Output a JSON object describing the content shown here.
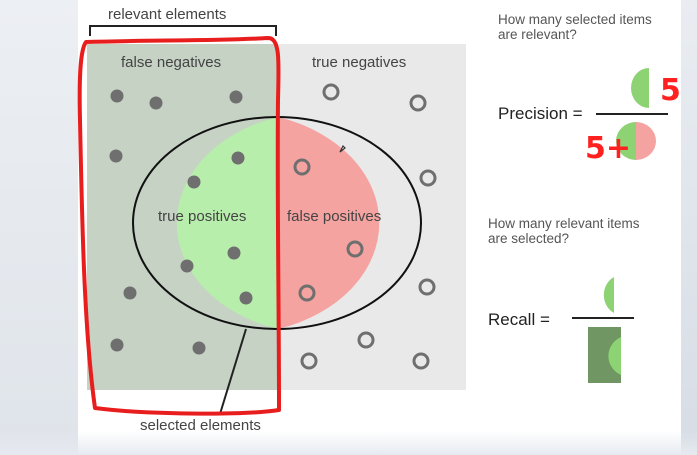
{
  "labels": {
    "relevant_elements": "relevant elements",
    "false_negatives": "false negatives",
    "true_negatives": "true negatives",
    "true_positives": "true positives",
    "false_positives": "false positives",
    "selected_elements": "selected elements"
  },
  "precision": {
    "question": "How many selected items are relevant?",
    "label": "Precision =",
    "annotation_top": "5",
    "annotation_bottom": "5+"
  },
  "recall": {
    "question": "How many relevant items are selected?",
    "label": "Recall ="
  },
  "colors": {
    "relevant_bg": "#c5d2c4",
    "irrelevant_bg": "#e9e9ea",
    "true_positive": "#b8eeab",
    "false_positive": "#f5a3a0",
    "dot_dark": "#6f6f6f",
    "recall_box": "#6f9663",
    "annotation": "#ff2020",
    "tp_half_circle": "#8dd273"
  }
}
